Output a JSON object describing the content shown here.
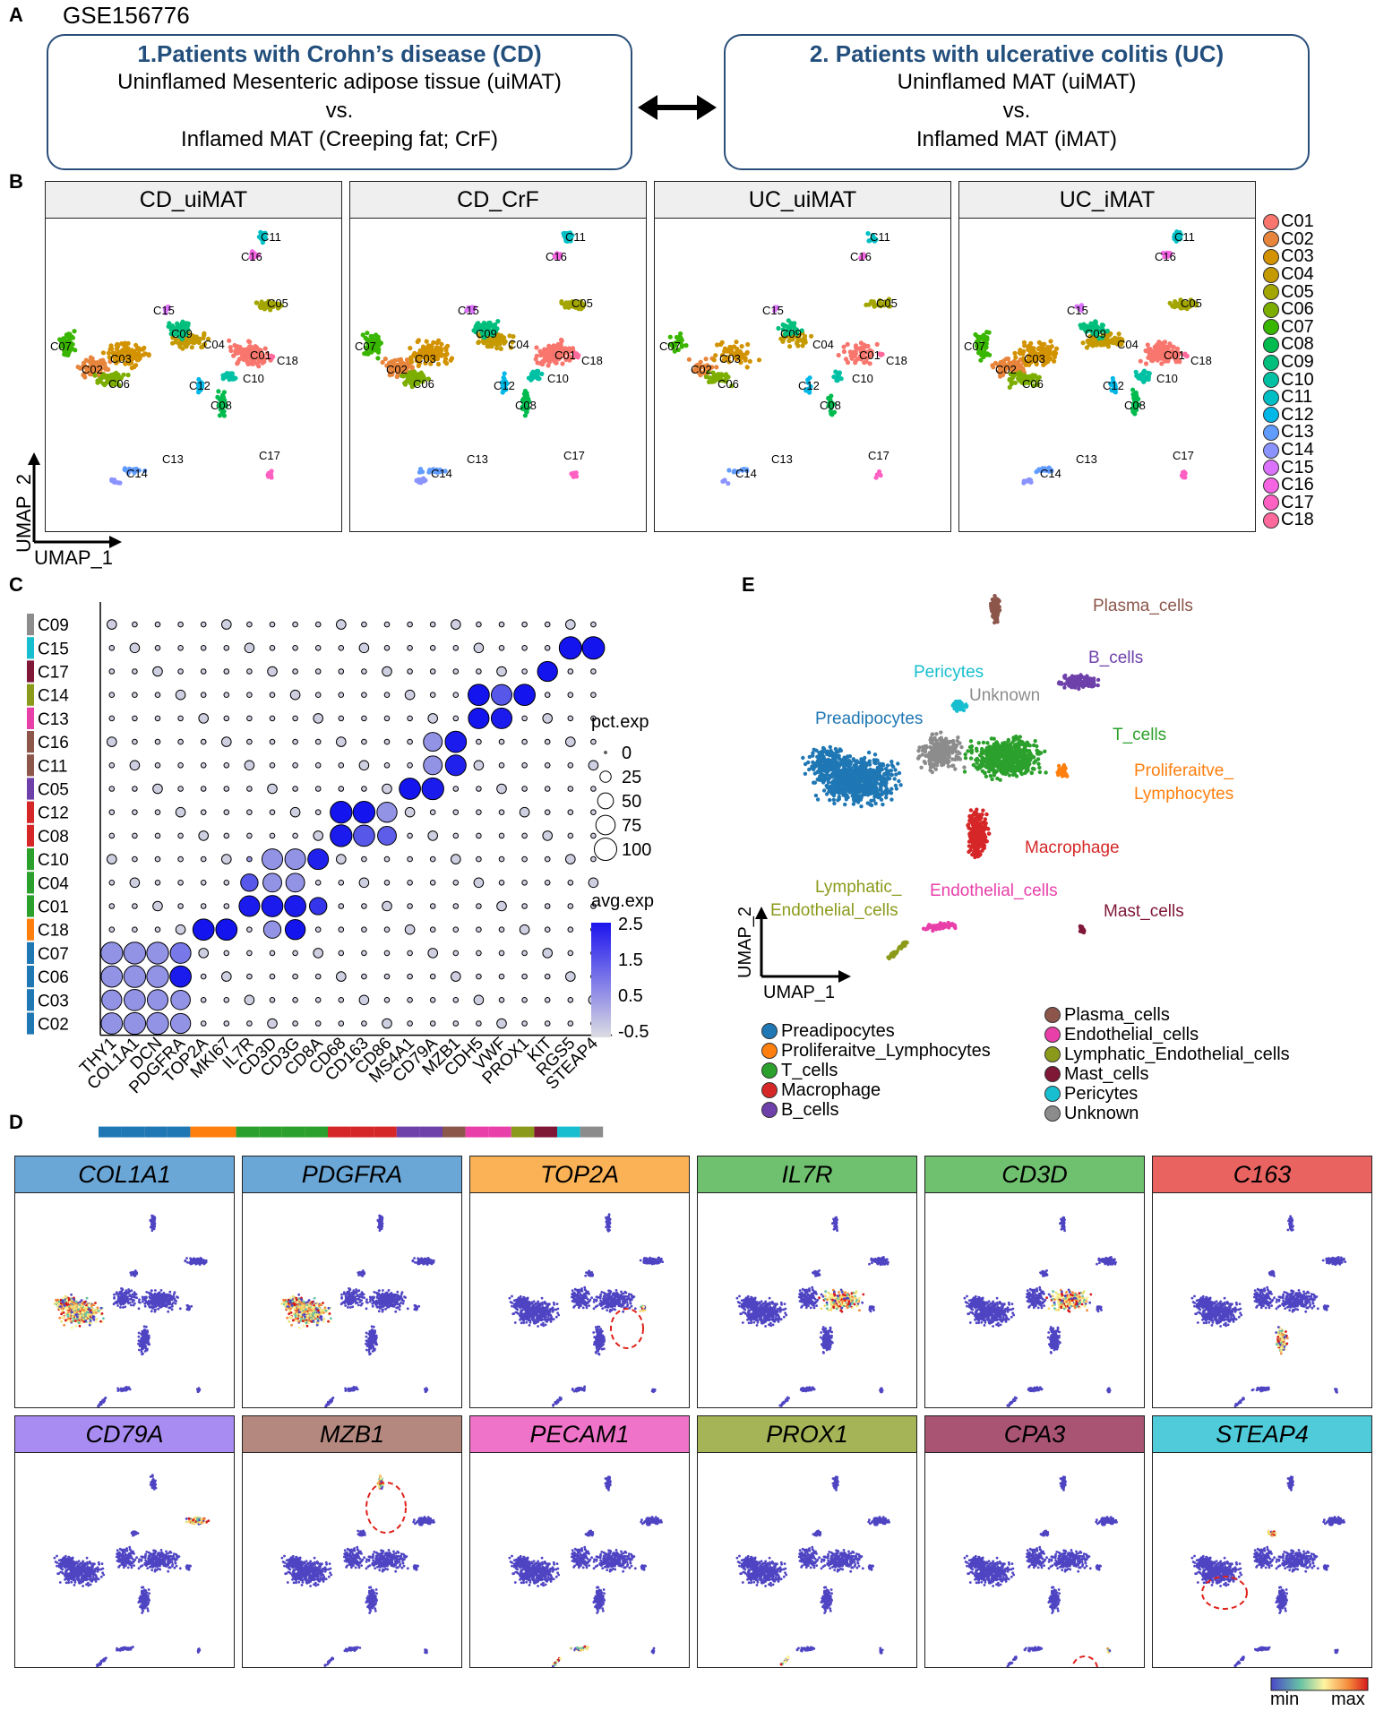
{
  "panel_a": {
    "label": "A",
    "dataset": "GSE156776",
    "box1": {
      "title": "1.Patients with Crohn’s disease (CD)",
      "line1": "Uninflamed Mesenteric adipose tissue (uiMAT)",
      "line2": "vs.",
      "line3": "Inflamed MAT (Creeping fat; CrF)"
    },
    "box2": {
      "title": "2. Patients with ulcerative colitis (UC)",
      "line1": "Uninflamed MAT (uiMAT)",
      "line2": "vs.",
      "line3": "Inflamed MAT (iMAT)"
    }
  },
  "panel_b": {
    "label": "B",
    "facets": [
      "CD_uiMAT",
      "CD_CrF",
      "UC_uiMAT",
      "UC_iMAT"
    ],
    "xlabel": "UMAP_1",
    "ylabel": "UMAP_2",
    "clusters": [
      "C01",
      "C02",
      "C03",
      "C04",
      "C05",
      "C06",
      "C07",
      "C08",
      "C09",
      "C10",
      "C11",
      "C12",
      "C13",
      "C14",
      "C15",
      "C16",
      "C17",
      "C18"
    ],
    "cluster_colors": [
      "#F8766D",
      "#E8853C",
      "#D39200",
      "#C49A00",
      "#A3A500",
      "#7CAE00",
      "#39B600",
      "#00BB4E",
      "#00BF7D",
      "#00C1A3",
      "#00BFC4",
      "#00B8E7",
      "#619CFF",
      "#8B93FF",
      "#DB72FB",
      "#F564E3",
      "#FF61C3",
      "#FF699C"
    ]
  },
  "panel_c": {
    "label": "C",
    "chart_data": {
      "type": "dot",
      "rows": [
        "C09",
        "C15",
        "C17",
        "C14",
        "C13",
        "C16",
        "C11",
        "C05",
        "C12",
        "C08",
        "C10",
        "C04",
        "C01",
        "C18",
        "C07",
        "C06",
        "C03",
        "C02"
      ],
      "row_colors": [
        "#8c8c8c",
        "#17becf",
        "#7f1737",
        "#8c9a1b",
        "#e83fa9",
        "#8c564b",
        "#8c564b",
        "#6e40aa",
        "#d62728",
        "#d62728",
        "#2ca02c",
        "#2ca02c",
        "#2ca02c",
        "#ff7f0e",
        "#1f77b4",
        "#1f77b4",
        "#1f77b4",
        "#1f77b4"
      ],
      "genes": [
        "THY1",
        "COL1A1",
        "DCN",
        "PDGFRA",
        "TOP2A",
        "MKI67",
        "IL7R",
        "CD3D",
        "CD3G",
        "CD8A",
        "CD68",
        "CD163",
        "CD86",
        "MS4A1",
        "CD79A",
        "MZB1",
        "CDH5",
        "VWF",
        "PROX1",
        "KIT",
        "RGS5",
        "STEAP4"
      ],
      "bottom_bar_colors": [
        "#1f77b4",
        "#1f77b4",
        "#1f77b4",
        "#1f77b4",
        "#ff7f0e",
        "#ff7f0e",
        "#2ca02c",
        "#2ca02c",
        "#2ca02c",
        "#2ca02c",
        "#d62728",
        "#d62728",
        "#d62728",
        "#6e40aa",
        "#6e40aa",
        "#8c564b",
        "#e83fa9",
        "#e83fa9",
        "#8c9a1b",
        "#7f1737",
        "#17becf",
        "#8c8c8c"
      ],
      "size_legend_title": "pct.exp",
      "size_legend_values": [
        0,
        25,
        50,
        75,
        100
      ],
      "color_legend_title": "avg.exp",
      "color_legend_ticks": [
        "2.5",
        "1.5",
        "0.5",
        "-0.5"
      ],
      "color_range": [
        -0.5,
        2.5
      ]
    }
  },
  "panel_d": {
    "label": "D",
    "genes": [
      "COL1A1",
      "PDGFRA",
      "TOP2A",
      "IL7R",
      "CD3D",
      "C163",
      "CD79A",
      "MZB1",
      "PECAM1",
      "PROX1",
      "CPA3",
      "STEAP4"
    ],
    "header_colors": [
      "#6aa6d6",
      "#6aa6d6",
      "#fbb257",
      "#6fc06f",
      "#6fc06f",
      "#e96361",
      "#a98cf1",
      "#b4887f",
      "#ef74c9",
      "#a4b456",
      "#a85472",
      "#4fcbd9"
    ],
    "scale_min": "min",
    "scale_max": "max"
  },
  "panel_e": {
    "label": "E",
    "xlabel": "UMAP_1",
    "ylabel": "UMAP_2",
    "cell_labels": {
      "plasma": "Plasma_cells",
      "pericytes": "Pericytes",
      "bcells": "B_cells",
      "unknown": "Unknown",
      "preadipocytes": "Preadipocytes",
      "tcells": "T_cells",
      "prolif1": "Proliferaitve_",
      "prolif2": "Lymphocytes",
      "macrophage": "Macrophage",
      "lymph1": "Lymphatic_",
      "lymph2": "Endothelial_cells",
      "endothelial": "Endothelial_cells",
      "mast": "Mast_cells"
    },
    "legend_left": [
      "Preadipocytes",
      "Proliferaitve_Lymphocytes",
      "T_cells",
      "Macrophage",
      "B_cells"
    ],
    "legend_left_colors": [
      "#1f77b4",
      "#ff7f0e",
      "#2ca02c",
      "#d62728",
      "#6e40aa"
    ],
    "legend_right": [
      "Plasma_cells",
      "Endothelial_cells",
      "Lymphatic_Endothelial_cells",
      "Mast_cells",
      "Pericytes",
      "Unknown"
    ],
    "legend_right_colors": [
      "#8c564b",
      "#e83fa9",
      "#8c9a1b",
      "#7f1737",
      "#17becf",
      "#8c8c8c"
    ]
  }
}
